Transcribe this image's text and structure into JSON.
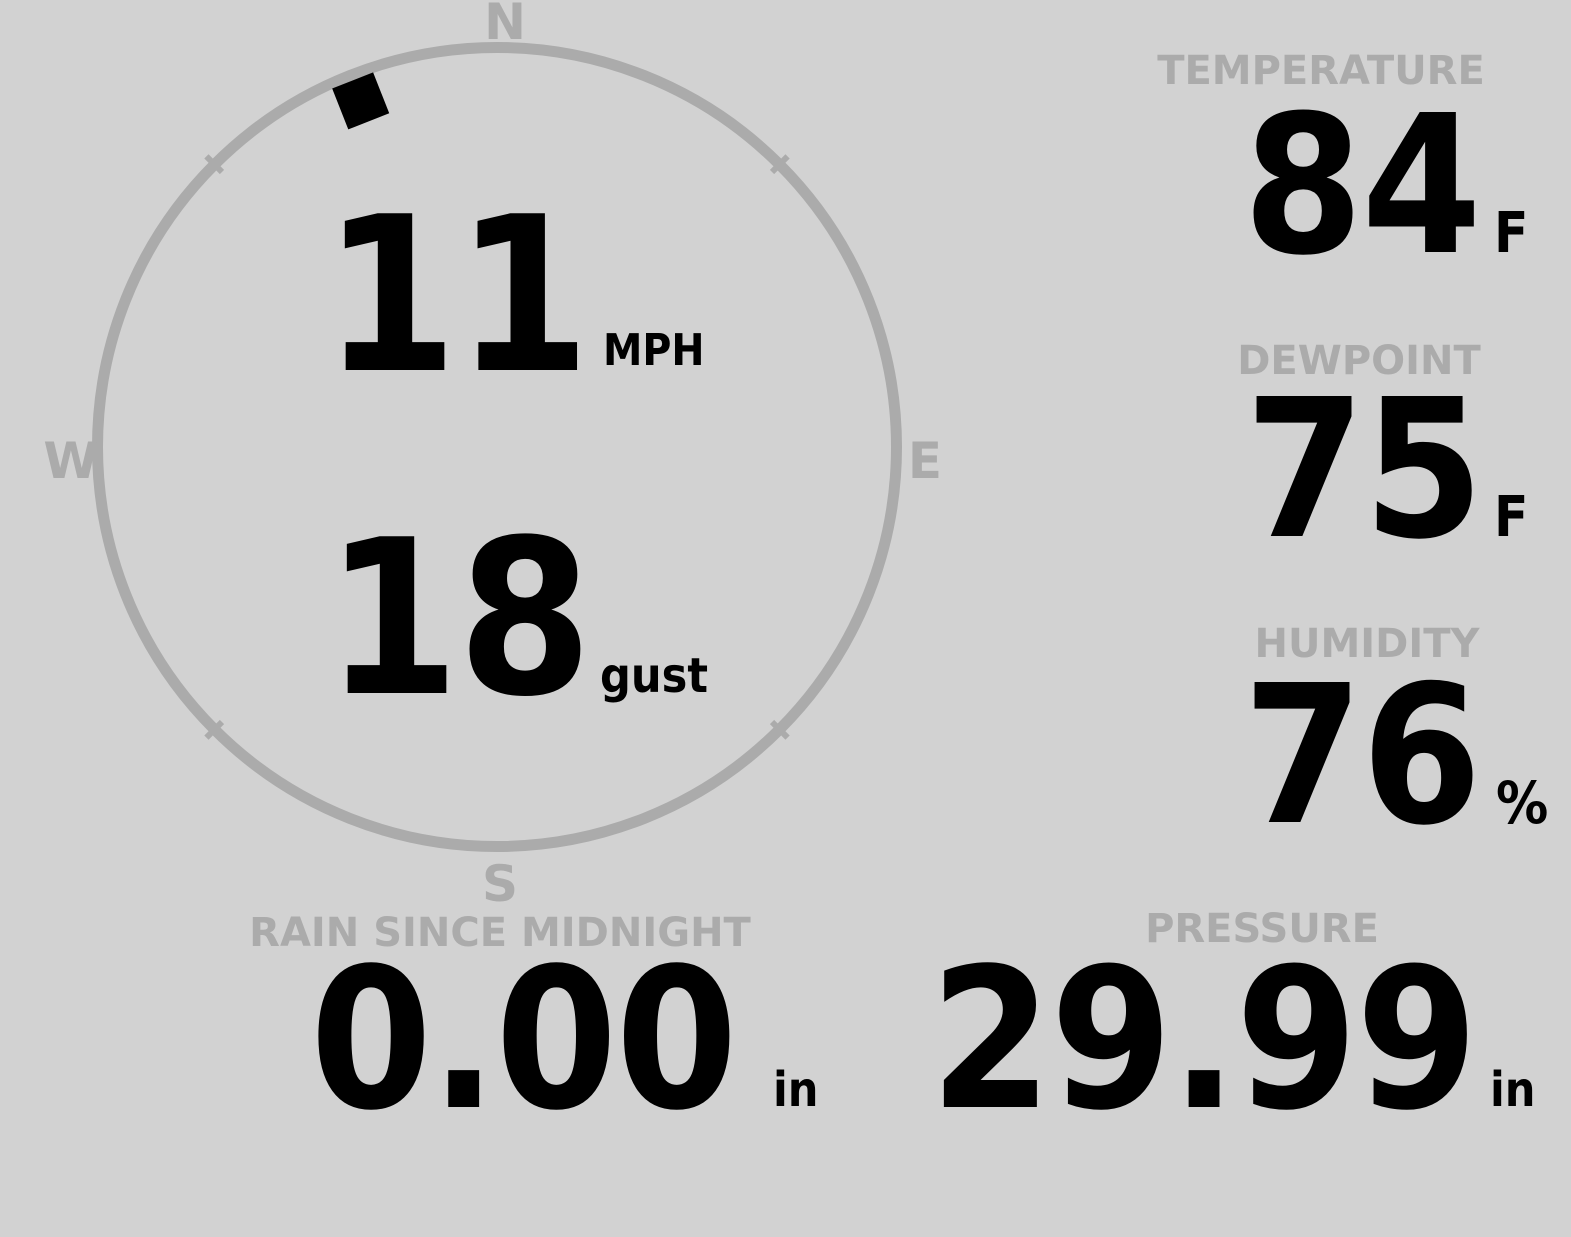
{
  "compass": {
    "cardinal": {
      "north": "N",
      "east": "E",
      "south": "S",
      "west": "W"
    },
    "wind_speed_value": "11",
    "wind_speed_unit": "MPH",
    "wind_gust_value": "18",
    "wind_gust_unit": "gust",
    "wind_direction_deg": 338.5
  },
  "metrics": {
    "temperature": {
      "label": "TEMPERATURE",
      "value": "84",
      "unit": "F"
    },
    "dewpoint": {
      "label": "DEWPOINT",
      "value": "75",
      "unit": "F"
    },
    "humidity": {
      "label": "HUMIDITY",
      "value": "76",
      "unit": "%"
    },
    "rain": {
      "label": "RAIN SINCE MIDNIGHT",
      "value": "0.00",
      "unit": "in"
    },
    "pressure": {
      "label": "PRESSURE",
      "value": "29.99",
      "unit": "in"
    }
  },
  "colors": {
    "background": "#d2d2d2",
    "muted_gray": "#ababab",
    "value_black": "#000000",
    "wind_marker_black": "#000000"
  }
}
